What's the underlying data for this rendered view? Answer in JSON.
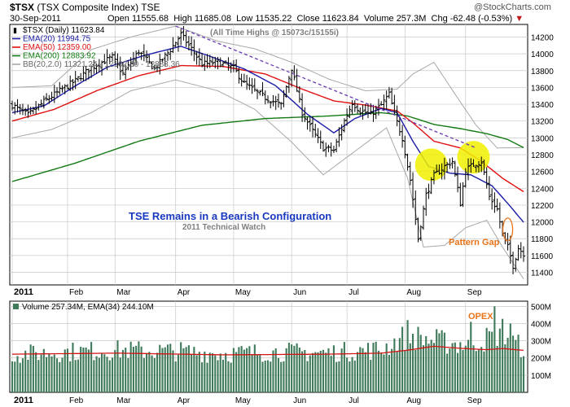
{
  "header": {
    "symbol": "$TSX",
    "name": "(TSX Composite Index)",
    "exchange": "TSE",
    "date": "30-Sep-2011",
    "open_label": "Open",
    "open": "11555.68",
    "high_label": "High",
    "high": "11685.08",
    "low_label": "Low",
    "low": "11535.22",
    "close_label": "Close",
    "close": "11623.84",
    "volume_label": "Volume",
    "volume": "257.3M",
    "chg_label": "Chg",
    "chg": "-62.48 (-0.53%)",
    "chg_arrow": "▼",
    "brand": "@StockCharts.com"
  },
  "colors": {
    "price": "#000000",
    "ema20": "#1a1aa6",
    "ema50": "#e01010",
    "ema200": "#127a12",
    "bb": "#a8a8a8",
    "volume_bar": "#3f7a5a",
    "volume_ema": "#d41414",
    "grid": "#c8c8c8",
    "title_blue": "#1838c0",
    "orange": "#e8741a",
    "highlight": "#f0f000",
    "trend": "#6a3ab0"
  },
  "chart_data": [
    {
      "type": "line",
      "title": "$TSX (TSX Composite Index) TSE",
      "subtitle": "30-Sep-2011",
      "legend": [
        {
          "label": "$TSX (Daily) 11623.84",
          "color_key": "price"
        },
        {
          "label": "EMA(20) 11994.75",
          "color_key": "ema20"
        },
        {
          "label": "EMA(50) 12359.00",
          "color_key": "ema50"
        },
        {
          "label": "EMA(200) 12883.92",
          "color_key": "ema200"
        },
        {
          "label": "BB(20,2.0) 11321.24 - 12102.30 - 12883.36",
          "color_key": "bb"
        }
      ],
      "legend_position": "top-left",
      "x_tick_labels": [
        "2011",
        "Feb",
        "Mar",
        "Apr",
        "May",
        "Jun",
        "Jul",
        "Aug",
        "Sep"
      ],
      "x_ticks_day": [
        0,
        21,
        39,
        62,
        84,
        106,
        127,
        149,
        172
      ],
      "y_ticks": [
        11400,
        11600,
        11800,
        12000,
        12200,
        12400,
        12600,
        12800,
        13000,
        13200,
        13400,
        13600,
        13800,
        14000,
        14200
      ],
      "ylim": [
        11250,
        14350
      ],
      "grid": true,
      "close_keypoints": [
        [
          0,
          13390
        ],
        [
          6,
          13270
        ],
        [
          12,
          13430
        ],
        [
          18,
          13560
        ],
        [
          24,
          13680
        ],
        [
          30,
          13840
        ],
        [
          38,
          13960
        ],
        [
          42,
          13760
        ],
        [
          48,
          14030
        ],
        [
          54,
          13820
        ],
        [
          60,
          14050
        ],
        [
          64,
          14230
        ],
        [
          68,
          14060
        ],
        [
          72,
          13880
        ],
        [
          78,
          13900
        ],
        [
          84,
          13830
        ],
        [
          88,
          13650
        ],
        [
          92,
          13560
        ],
        [
          96,
          13480
        ],
        [
          102,
          13390
        ],
        [
          106,
          13830
        ],
        [
          110,
          13300
        ],
        [
          114,
          13080
        ],
        [
          118,
          12880
        ],
        [
          122,
          12850
        ],
        [
          126,
          13200
        ],
        [
          129,
          13420
        ],
        [
          132,
          13320
        ],
        [
          136,
          13280
        ],
        [
          140,
          13390
        ],
        [
          143,
          13520
        ],
        [
          145,
          13280
        ],
        [
          148,
          13000
        ],
        [
          151,
          12500
        ],
        [
          154,
          11800
        ],
        [
          157,
          12320
        ],
        [
          160,
          12550
        ],
        [
          164,
          12660
        ],
        [
          167,
          12720
        ],
        [
          170,
          12220
        ],
        [
          172,
          12620
        ],
        [
          175,
          12680
        ],
        [
          178,
          12720
        ],
        [
          181,
          12300
        ],
        [
          184,
          12150
        ],
        [
          186,
          11850
        ],
        [
          188,
          11700
        ],
        [
          190,
          11480
        ],
        [
          192,
          11690
        ],
        [
          194,
          11623.84
        ]
      ],
      "ema20_keypoints": [
        [
          0,
          13300
        ],
        [
          12,
          13380
        ],
        [
          24,
          13620
        ],
        [
          36,
          13840
        ],
        [
          50,
          13980
        ],
        [
          64,
          14090
        ],
        [
          76,
          13960
        ],
        [
          88,
          13820
        ],
        [
          100,
          13620
        ],
        [
          112,
          13280
        ],
        [
          122,
          13060
        ],
        [
          130,
          13230
        ],
        [
          140,
          13350
        ],
        [
          146,
          13300
        ],
        [
          152,
          12960
        ],
        [
          158,
          12660
        ],
        [
          166,
          12580
        ],
        [
          174,
          12560
        ],
        [
          182,
          12430
        ],
        [
          188,
          12220
        ],
        [
          194,
          11994.75
        ]
      ],
      "ema50_keypoints": [
        [
          0,
          13200
        ],
        [
          16,
          13340
        ],
        [
          32,
          13560
        ],
        [
          48,
          13740
        ],
        [
          64,
          13860
        ],
        [
          80,
          13850
        ],
        [
          96,
          13760
        ],
        [
          110,
          13580
        ],
        [
          122,
          13440
        ],
        [
          134,
          13390
        ],
        [
          146,
          13320
        ],
        [
          152,
          13180
        ],
        [
          160,
          12960
        ],
        [
          170,
          12880
        ],
        [
          178,
          12720
        ],
        [
          186,
          12520
        ],
        [
          194,
          12359
        ]
      ],
      "ema200_keypoints": [
        [
          0,
          12480
        ],
        [
          24,
          12700
        ],
        [
          48,
          12960
        ],
        [
          72,
          13150
        ],
        [
          96,
          13230
        ],
        [
          120,
          13260
        ],
        [
          140,
          13300
        ],
        [
          150,
          13260
        ],
        [
          160,
          13160
        ],
        [
          170,
          13110
        ],
        [
          180,
          13050
        ],
        [
          188,
          12980
        ],
        [
          194,
          12883.92
        ]
      ],
      "bb_upper_keypoints": [
        [
          0,
          13600
        ],
        [
          15,
          13620
        ],
        [
          30,
          14050
        ],
        [
          45,
          14200
        ],
        [
          62,
          14330
        ],
        [
          78,
          14150
        ],
        [
          92,
          14060
        ],
        [
          106,
          13900
        ],
        [
          120,
          13700
        ],
        [
          134,
          13560
        ],
        [
          146,
          13580
        ],
        [
          152,
          13760
        ],
        [
          160,
          13900
        ],
        [
          168,
          13520
        ],
        [
          176,
          13150
        ],
        [
          184,
          12880
        ],
        [
          194,
          12883.36
        ]
      ],
      "bb_lower_keypoints": [
        [
          0,
          13000
        ],
        [
          15,
          13100
        ],
        [
          30,
          13300
        ],
        [
          45,
          13560
        ],
        [
          62,
          13690
        ],
        [
          78,
          13560
        ],
        [
          92,
          13340
        ],
        [
          106,
          12950
        ],
        [
          118,
          12560
        ],
        [
          130,
          12840
        ],
        [
          142,
          13120
        ],
        [
          150,
          12520
        ],
        [
          156,
          11700
        ],
        [
          164,
          11720
        ],
        [
          172,
          11930
        ],
        [
          180,
          12020
        ],
        [
          186,
          11700
        ],
        [
          194,
          11321.24
        ]
      ],
      "annotations": {
        "ath": "(All Time Highs @ 15073c/15155i)",
        "main_title": "TSE Remains in a Bearish Configuration",
        "sub_title": "2011 Technical Watch",
        "pattern_gap": "Pattern Gap",
        "circles": [
          {
            "day": 159,
            "price": 12680
          },
          {
            "day": 175,
            "price": 12770
          }
        ],
        "gap_oval": {
          "day": 188,
          "price": 11910
        }
      }
    },
    {
      "type": "bar",
      "title": "",
      "legend": [
        {
          "label": "Volume 257.34M, EMA(34) 244.10M",
          "color_key": "volume_bar"
        }
      ],
      "x_tick_labels": [
        "2011",
        "Feb",
        "Mar",
        "Apr",
        "May",
        "Jun",
        "Jul",
        "Aug",
        "Sep"
      ],
      "y_tick_labels": [
        "100M",
        "200M",
        "300M",
        "400M",
        "500M"
      ],
      "y_ticks": [
        100,
        200,
        300,
        400,
        500
      ],
      "ylim": [
        0,
        530
      ],
      "unit": "M",
      "volume_keypoints": [
        [
          0,
          220
        ],
        [
          20,
          235
        ],
        [
          40,
          245
        ],
        [
          60,
          240
        ],
        [
          80,
          225
        ],
        [
          100,
          235
        ],
        [
          120,
          230
        ],
        [
          140,
          250
        ],
        [
          150,
          330
        ],
        [
          160,
          300
        ],
        [
          170,
          280
        ],
        [
          180,
          310
        ],
        [
          186,
          360
        ],
        [
          190,
          290
        ],
        [
          194,
          257.34
        ]
      ],
      "volume_spikes": [
        [
          150,
          420
        ],
        [
          174,
          410
        ],
        [
          183,
          500
        ],
        [
          189,
          400
        ]
      ],
      "ema34_keypoints": [
        [
          0,
          222
        ],
        [
          40,
          228
        ],
        [
          80,
          218
        ],
        [
          120,
          222
        ],
        [
          140,
          228
        ],
        [
          150,
          245
        ],
        [
          160,
          268
        ],
        [
          170,
          256
        ],
        [
          180,
          248
        ],
        [
          186,
          255
        ],
        [
          194,
          244.1
        ]
      ],
      "annotations": {
        "opex": "OPEX"
      }
    }
  ]
}
